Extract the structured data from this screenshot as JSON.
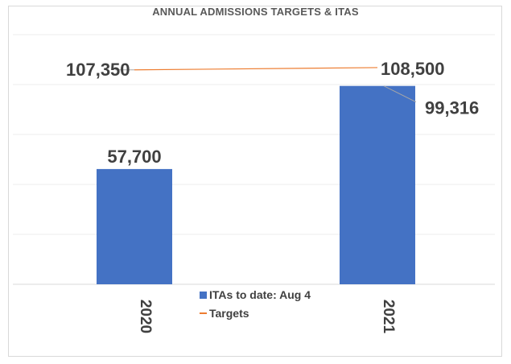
{
  "chart_data": {
    "type": "bar",
    "title": "ANNUAL ADMISSIONS TARGETS & ITAS",
    "categories": [
      "2020",
      "2021"
    ],
    "series": [
      {
        "name": "ITAs to date: Aug 4",
        "type": "bar",
        "values": [
          57700,
          99316
        ],
        "labels": [
          "57,700",
          "99,316"
        ],
        "color": "#4472c4"
      },
      {
        "name": "Targets",
        "type": "line",
        "values": [
          107350,
          108500
        ],
        "labels": [
          "107,350",
          "108,500"
        ],
        "color": "#ed7d31"
      }
    ],
    "ylim": [
      0,
      125000
    ],
    "gridlines": true,
    "legend_position": "bottom-center"
  }
}
